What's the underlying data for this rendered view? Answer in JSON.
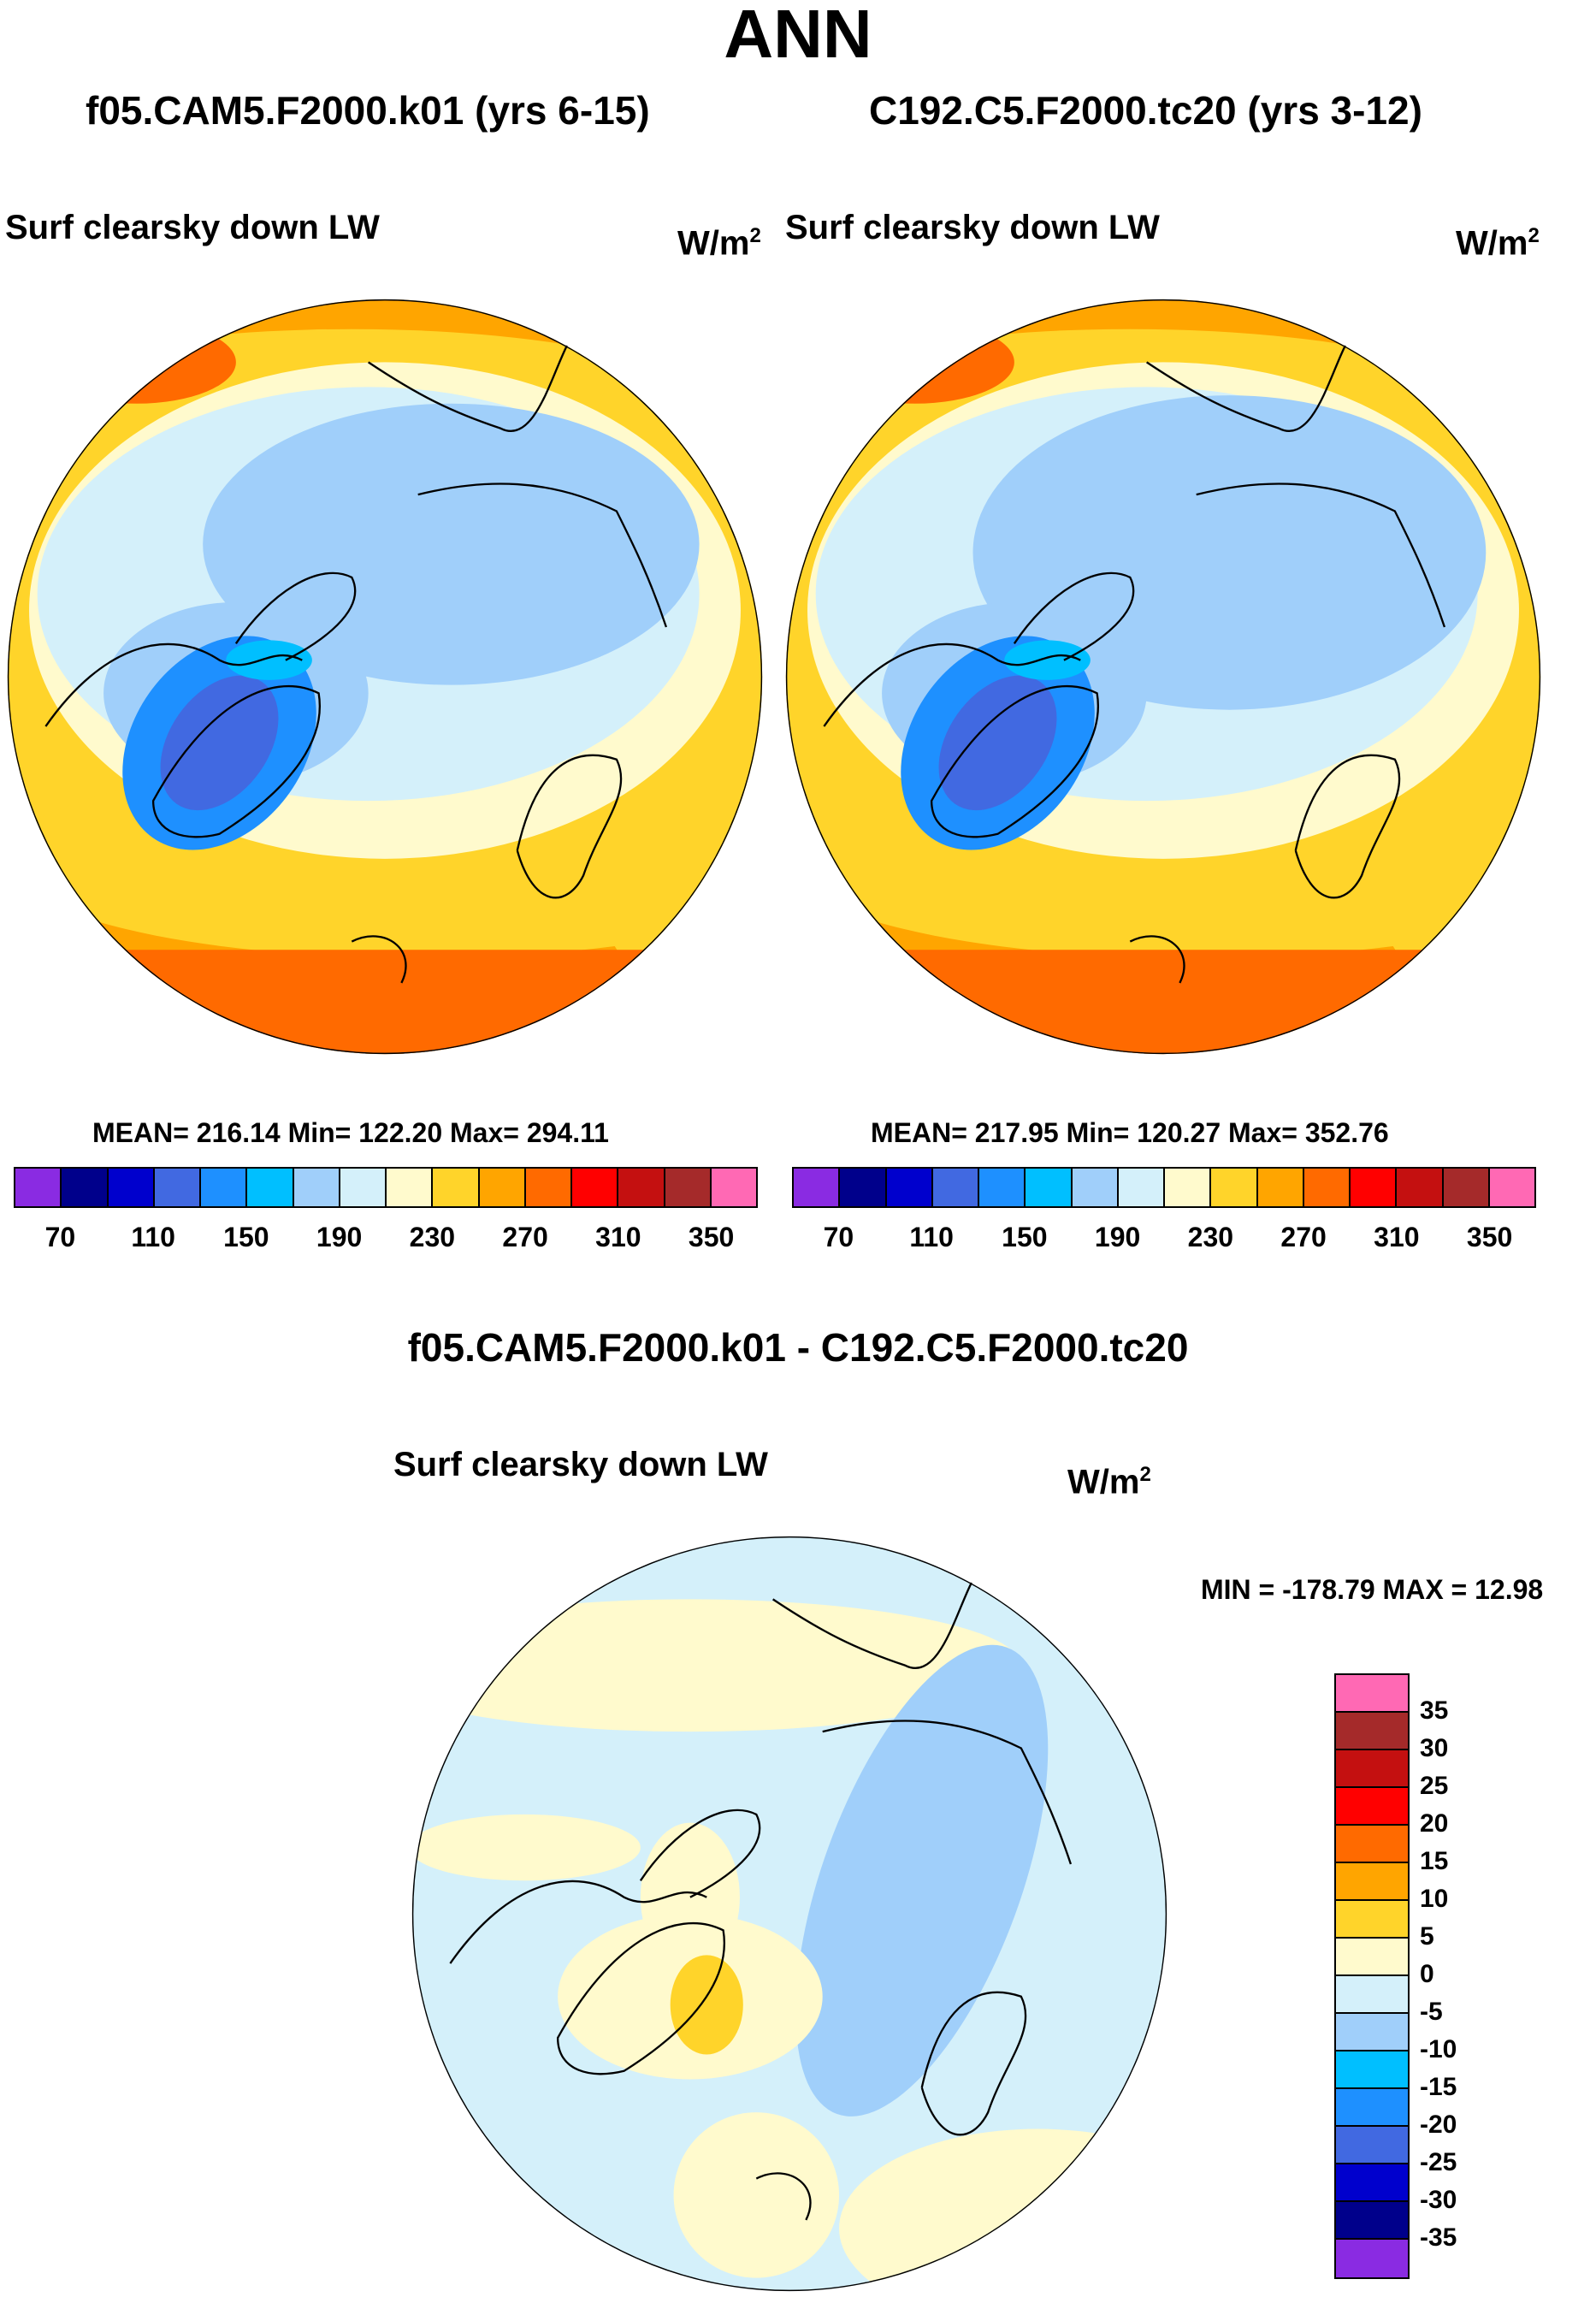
{
  "title": "ANN",
  "panels": [
    {
      "case_label": "f05.CAM5.F2000.k01 (yrs 6-15)",
      "variable": "Surf clearsky down LW",
      "units": "W/m",
      "units_sup": "2",
      "stats": "MEAN= 216.14  Min= 122.20  Max= 294.11"
    },
    {
      "case_label": "C192.C5.F2000.tc20 (yrs 3-12)",
      "variable": "Surf clearsky down LW",
      "units": "W/m",
      "units_sup": "2",
      "stats": "MEAN= 217.95  Min= 120.27  Max= 352.76"
    }
  ],
  "diff_panel": {
    "case_label": "f05.CAM5.F2000.k01 - C192.C5.F2000.tc20",
    "variable": "Surf clearsky down LW",
    "units": "W/m",
    "units_sup": "2",
    "stats": "MIN = -178.79 MAX =  12.98"
  },
  "colors": {
    "abs": [
      "#8a2be2",
      "#00008b",
      "#0000cd",
      "#4169e1",
      "#1e90ff",
      "#00bfff",
      "#a0cffa",
      "#d4f0fa",
      "#fffacd",
      "#ffd42a",
      "#ffa500",
      "#ff6a00",
      "#ff0000",
      "#c41010",
      "#a52a2a",
      "#ff69b4"
    ],
    "diff": [
      "#ff69b4",
      "#a52a2a",
      "#c41010",
      "#ff0000",
      "#ff6a00",
      "#ffa500",
      "#ffd42a",
      "#fffacd",
      "#d4f0fa",
      "#a0cffa",
      "#00bfff",
      "#1e90ff",
      "#4169e1",
      "#0000cd",
      "#00008b",
      "#8a2be2"
    ],
    "coast": "#000000"
  },
  "chart_data": [
    {
      "type": "heatmap",
      "projection": "north polar stereographic",
      "title": "Surf clearsky down LW",
      "subtitle": "f05.CAM5.F2000.k01 (yrs 6-15)",
      "units": "W/m2",
      "mean": 216.14,
      "min": 122.2,
      "max": 294.11,
      "contour_levels": [
        70,
        80,
        90,
        110,
        130,
        150,
        170,
        190,
        210,
        230,
        250,
        270,
        290,
        310,
        330,
        350
      ],
      "colorbar_tick_labels": [
        "70",
        "110",
        "150",
        "190",
        "230",
        "270",
        "310",
        "350"
      ]
    },
    {
      "type": "heatmap",
      "projection": "north polar stereographic",
      "title": "Surf clearsky down LW",
      "subtitle": "C192.C5.F2000.tc20 (yrs 3-12)",
      "units": "W/m2",
      "mean": 217.95,
      "min": 120.27,
      "max": 352.76,
      "contour_levels": [
        70,
        80,
        90,
        110,
        130,
        150,
        170,
        190,
        210,
        230,
        250,
        270,
        290,
        310,
        330,
        350
      ],
      "colorbar_tick_labels": [
        "70",
        "110",
        "150",
        "190",
        "230",
        "270",
        "310",
        "350"
      ]
    },
    {
      "type": "heatmap",
      "projection": "north polar stereographic",
      "title": "Surf clearsky down LW",
      "subtitle": "f05.CAM5.F2000.k01 - C192.C5.F2000.tc20",
      "units": "W/m2",
      "min": -178.79,
      "max": 12.98,
      "contour_levels": [
        35,
        30,
        25,
        20,
        15,
        10,
        5,
        0,
        -5,
        -10,
        -15,
        -20,
        -25,
        -30,
        -35
      ],
      "colorbar_tick_labels": [
        "35",
        "30",
        "25",
        "20",
        "15",
        "10",
        "5",
        "0",
        "-5",
        "-10",
        "-15",
        "-20",
        "-25",
        "-30",
        "-35"
      ]
    }
  ]
}
